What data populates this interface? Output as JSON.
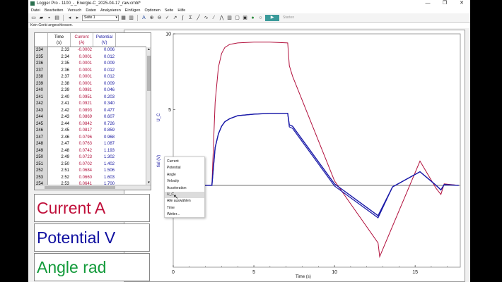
{
  "window": {
    "title": "Logger Pro - 1100_-_Energie-C_2025-04-17_raw.cmbl*",
    "controls": [
      "—",
      "❐",
      "✕"
    ]
  },
  "menu": [
    "Datei",
    "Bearbeiten",
    "Versuch",
    "Daten",
    "Analysieren",
    "Einfügen",
    "Optionen",
    "Seite",
    "Hilfe"
  ],
  "toolbar": {
    "page_select": "Seite 1",
    "start_label": "Starten"
  },
  "status": {
    "text": "Kein Gerät angeschlossen."
  },
  "table": {
    "columns": [
      {
        "name": "Time",
        "unit": "(s)"
      },
      {
        "name": "Current",
        "unit": "(A)"
      },
      {
        "name": "Potential",
        "unit": "(V)"
      }
    ],
    "rows": [
      [
        "234",
        "2.33",
        "-0.0002",
        "0.006"
      ],
      [
        "235",
        "2.34",
        "0.0001",
        "0.012"
      ],
      [
        "236",
        "2.35",
        "0.0001",
        "0.009"
      ],
      [
        "237",
        "2.36",
        "0.0001",
        "0.012"
      ],
      [
        "238",
        "2.37",
        "0.0001",
        "0.012"
      ],
      [
        "239",
        "2.38",
        "0.0001",
        "0.009"
      ],
      [
        "240",
        "2.39",
        "0.0981",
        "0.046"
      ],
      [
        "241",
        "2.40",
        "0.0951",
        "0.203"
      ],
      [
        "242",
        "2.41",
        "0.0921",
        "0.340"
      ],
      [
        "243",
        "2.42",
        "0.0893",
        "0.477"
      ],
      [
        "244",
        "2.43",
        "0.0869",
        "0.607"
      ],
      [
        "245",
        "2.44",
        "0.0842",
        "0.726"
      ],
      [
        "246",
        "2.45",
        "0.0817",
        "0.859"
      ],
      [
        "247",
        "2.46",
        "0.0796",
        "0.968"
      ],
      [
        "248",
        "2.47",
        "0.0763",
        "1.087"
      ],
      [
        "249",
        "2.48",
        "0.0742",
        "1.193"
      ],
      [
        "250",
        "2.49",
        "0.0723",
        "1.302"
      ],
      [
        "251",
        "2.50",
        "0.0702",
        "1.402"
      ],
      [
        "252",
        "2.51",
        "0.0684",
        "1.506"
      ],
      [
        "253",
        "2.52",
        "0.0660",
        "1.603"
      ],
      [
        "254",
        "2.53",
        "0.0641",
        "1.700"
      ],
      [
        "255",
        "2.54",
        "0.0623",
        "1.788"
      ],
      [
        "256",
        "2.55",
        "0.0605",
        "1.876"
      ],
      [
        "257",
        "2.56",
        "0.0587",
        "1.958"
      ]
    ]
  },
  "meters": {
    "current": "Current A",
    "potential": "Potential V",
    "angle": "Angle rad",
    "colors": {
      "current": "#c00f3a",
      "potential": "#1010a0",
      "angle": "#129a3a"
    }
  },
  "context_menu": {
    "items": [
      "Current",
      "Potential",
      "Angle",
      "Velocity",
      "Acceleration",
      "U_C",
      "Alle auswählen",
      "Time",
      "Weiter..."
    ],
    "highlighted": "U_C"
  },
  "chart_data": {
    "type": "line",
    "xlabel": "Time (s)",
    "ylabel": "U_C",
    "ylabel_partial": "tial (V)",
    "xlim": [
      0,
      17.8
    ],
    "ylim": [
      -5.4,
      10
    ],
    "xticks": [
      0,
      5,
      10,
      15
    ],
    "yticks": [
      0,
      5,
      10
    ],
    "series": [
      {
        "color": "#b2113d",
        "x": [
          0,
          2.4,
          2.6,
          2.8,
          3.0,
          3.2,
          3.5,
          4.0,
          5.0,
          6.0,
          7.1,
          7.2,
          7.4,
          10.0,
          12.7,
          12.8,
          15.3,
          16.3,
          16.6,
          16.8,
          17.7
        ],
        "y": [
          0,
          0,
          5.5,
          7.8,
          8.7,
          9.1,
          9.3,
          9.4,
          9.45,
          9.45,
          9.4,
          7.9,
          7.2,
          0.3,
          -3.8,
          -4.7,
          1.6,
          -0.2,
          -0.6,
          0.1,
          0
        ]
      },
      {
        "color": "#1a1aa8",
        "x": [
          0,
          2.4,
          2.6,
          2.8,
          3.0,
          3.2,
          3.5,
          4.0,
          5.0,
          6.0,
          7.1,
          7.2,
          7.4,
          10.0,
          12.7,
          13.6,
          15.3,
          16.3,
          16.6,
          16.8,
          17.7
        ],
        "y": [
          0,
          0,
          2.5,
          3.4,
          3.9,
          4.2,
          4.4,
          4.6,
          4.7,
          4.75,
          4.75,
          4.0,
          3.9,
          0.1,
          -2.0,
          -0.1,
          0.9,
          0.0,
          -0.3,
          0.05,
          0
        ]
      }
    ]
  }
}
